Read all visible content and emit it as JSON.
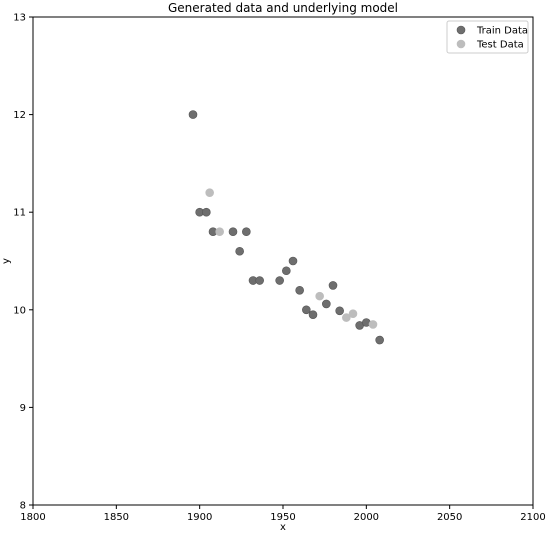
{
  "chart_data": {
    "type": "scatter",
    "title": "Generated data and underlying model",
    "xlabel": "x",
    "ylabel": "y",
    "xlim": [
      1800,
      2100
    ],
    "ylim": [
      8,
      13
    ],
    "xticks": [
      "1800",
      "1850",
      "1900",
      "1950",
      "2000",
      "2050",
      "2100"
    ],
    "yticks": [
      "8",
      "9",
      "10",
      "11",
      "12",
      "13"
    ],
    "grid": false,
    "legend": "top-right",
    "series": [
      {
        "name": "Train Data",
        "color": "#6e6e6e",
        "points": [
          [
            1896,
            12.0
          ],
          [
            1900,
            11.0
          ],
          [
            1904,
            11.0
          ],
          [
            1908,
            10.8
          ],
          [
            1920,
            10.8
          ],
          [
            1924,
            10.6
          ],
          [
            1928,
            10.8
          ],
          [
            1932,
            10.3
          ],
          [
            1936,
            10.3
          ],
          [
            1948,
            10.3
          ],
          [
            1952,
            10.4
          ],
          [
            1956,
            10.5
          ],
          [
            1960,
            10.2
          ],
          [
            1964,
            10.0
          ],
          [
            1968,
            9.95
          ],
          [
            1976,
            10.06
          ],
          [
            1980,
            10.25
          ],
          [
            1984,
            9.99
          ],
          [
            1996,
            9.84
          ],
          [
            2000,
            9.87
          ],
          [
            2008,
            9.69
          ]
        ]
      },
      {
        "name": "Test Data",
        "color": "#bdbdbd",
        "points": [
          [
            1906,
            11.2
          ],
          [
            1912,
            10.8
          ],
          [
            1972,
            10.14
          ],
          [
            1988,
            9.92
          ],
          [
            1992,
            9.96
          ],
          [
            2004,
            9.85
          ]
        ]
      }
    ]
  }
}
